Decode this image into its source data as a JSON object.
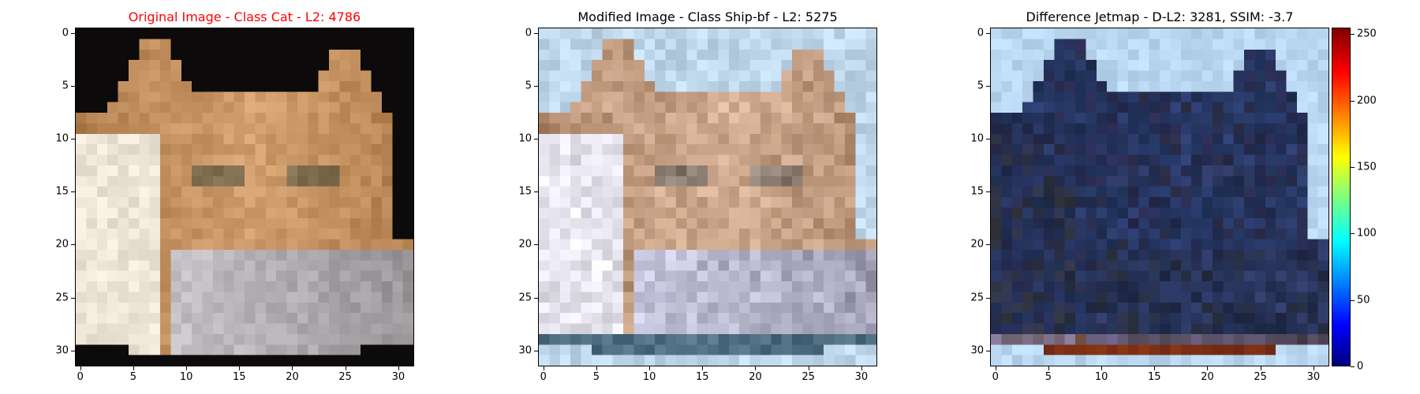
{
  "panels": [
    {
      "title": "Original Image - Class Cat - L2: 4786",
      "title_color": "#ff0000"
    },
    {
      "title": "Modified Image - Class Ship-bf - L2: 5275",
      "title_color": "#000000"
    },
    {
      "title": "Difference Jetmap - D-L2: 3281, SSIM: -3.7",
      "title_color": "#000000"
    }
  ],
  "axes": {
    "xlim": [
      0,
      31
    ],
    "ylim": [
      0,
      31
    ],
    "ticks": [
      "0",
      "5",
      "10",
      "15",
      "20",
      "25",
      "30"
    ],
    "tick_values": [
      0,
      5,
      10,
      15,
      20,
      25,
      30
    ]
  },
  "colorbar": {
    "colormap": "jet",
    "range": [
      0,
      255
    ],
    "ticks": [
      "0",
      "50",
      "100",
      "150",
      "200",
      "250"
    ],
    "tick_values": [
      0,
      50,
      100,
      150,
      200,
      250
    ]
  }
}
